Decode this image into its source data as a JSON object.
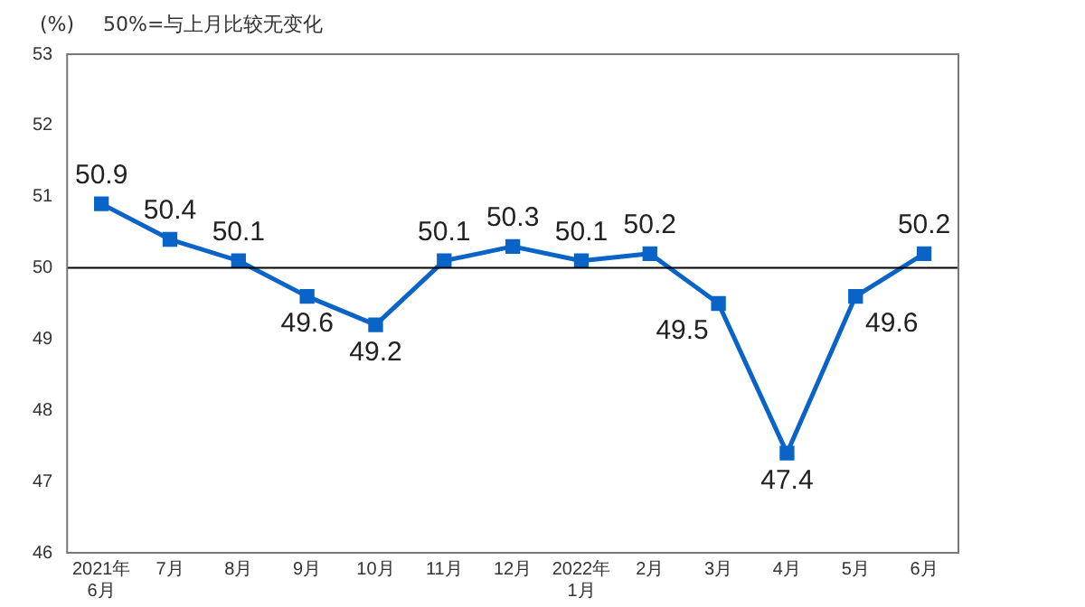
{
  "chart_data": {
    "type": "line",
    "ylabel": "(%)",
    "annotations": [
      "50%=与上月比较无变化"
    ],
    "categories": [
      "2021年\n6月",
      "7月",
      "8月",
      "9月",
      "10月",
      "11月",
      "12月",
      "2022年\n1月",
      "2月",
      "3月",
      "4月",
      "5月",
      "6月"
    ],
    "series": [
      {
        "color": "#0a64c8",
        "values": [
          50.9,
          50.4,
          50.1,
          49.6,
          49.2,
          50.1,
          50.3,
          50.1,
          50.2,
          49.5,
          47.4,
          49.6,
          50.2
        ]
      }
    ],
    "ylim": [
      46,
      53
    ],
    "yticks": [
      46,
      47,
      48,
      49,
      50,
      51,
      52,
      53
    ],
    "ref_lines": [
      {
        "axis": "y",
        "value": 50,
        "color": "#000000"
      }
    ],
    "grid": false,
    "legend": false,
    "marker": "square",
    "line_style": "solid",
    "data_labels": true
  }
}
